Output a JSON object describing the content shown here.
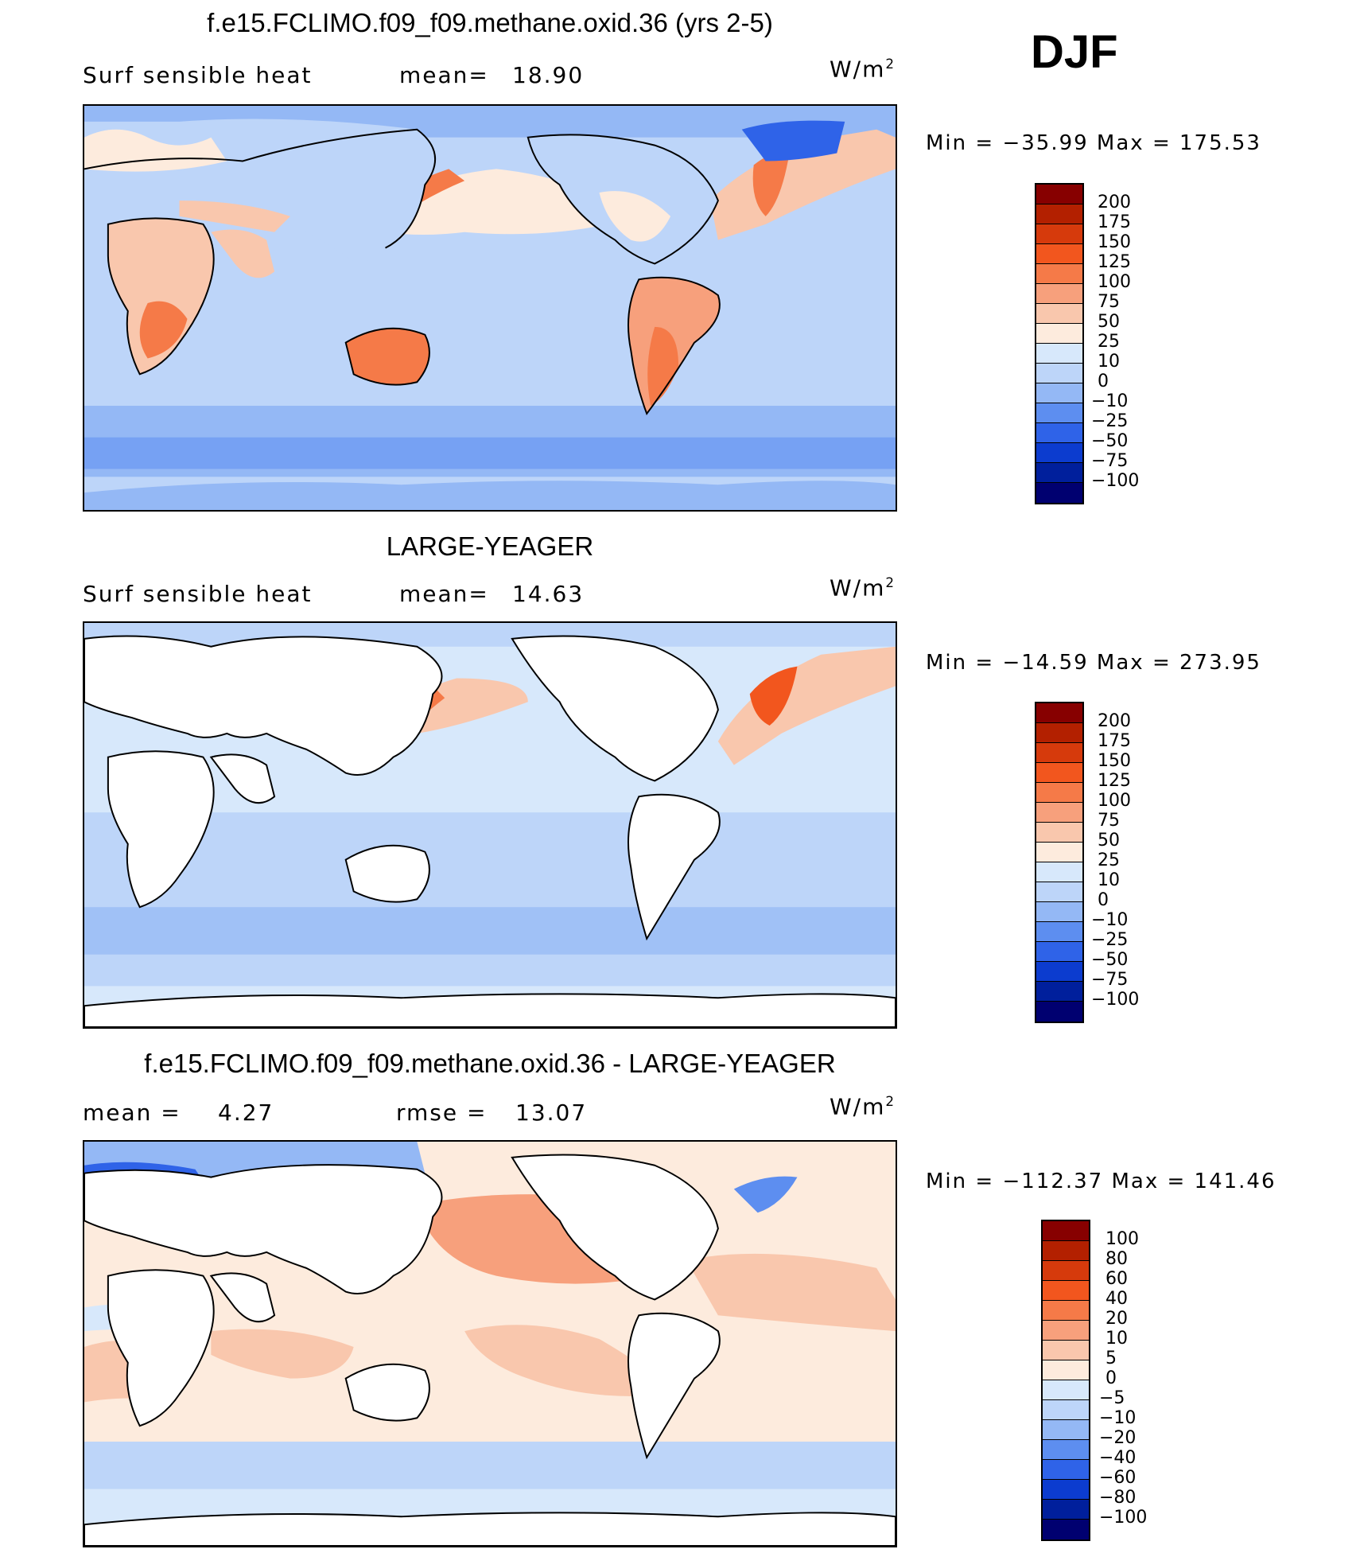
{
  "season": "DJF",
  "panels": [
    {
      "title": "f.e15.FCLIMO.f09_f09.methane.oxid.36 (yrs 2-5)",
      "variable": "Surf  sensible  heat",
      "stat_label": "mean=",
      "stat_value": "18.90",
      "stat2_label": "",
      "stat2_value": "",
      "units_base": "W/m",
      "units_exp": "2",
      "min_max": "Min  =  −35.99  Max  =  175.53",
      "land_filled": true,
      "colorbar": {
        "labels": [
          "200",
          "175",
          "150",
          "125",
          "100",
          "75",
          "50",
          "25",
          "10",
          "0",
          "−10",
          "−25",
          "−50",
          "−75",
          "−100"
        ],
        "colors": [
          "#870000",
          "#b32000",
          "#d63a0c",
          "#f2561e",
          "#f57a48",
          "#f7a07c",
          "#f9c7ad",
          "#fdebdd",
          "#d7e8fb",
          "#bdd5f9",
          "#94b8f5",
          "#5d8ef0",
          "#2f63e8",
          "#0c3ccf",
          "#001f9c",
          "#000070"
        ]
      }
    },
    {
      "title": "LARGE-YEAGER",
      "variable": "Surf  sensible  heat",
      "stat_label": "mean=",
      "stat_value": "14.63",
      "stat2_label": "",
      "stat2_value": "",
      "units_base": "W/m",
      "units_exp": "2",
      "min_max": "Min  =  −14.59  Max  =  273.95",
      "land_filled": false,
      "colorbar": {
        "labels": [
          "200",
          "175",
          "150",
          "125",
          "100",
          "75",
          "50",
          "25",
          "10",
          "0",
          "−10",
          "−25",
          "−50",
          "−75",
          "−100"
        ],
        "colors": [
          "#870000",
          "#b32000",
          "#d63a0c",
          "#f2561e",
          "#f57a48",
          "#f7a07c",
          "#f9c7ad",
          "#fdebdd",
          "#d7e8fb",
          "#bdd5f9",
          "#94b8f5",
          "#5d8ef0",
          "#2f63e8",
          "#0c3ccf",
          "#001f9c",
          "#000070"
        ]
      }
    },
    {
      "title": "f.e15.FCLIMO.f09_f09.methane.oxid.36 - LARGE-YEAGER",
      "variable": "",
      "stat_label": "mean  =",
      "stat_value": "4.27",
      "stat2_label": "rmse  =",
      "stat2_value": "13.07",
      "units_base": "W/m",
      "units_exp": "2",
      "min_max": "Min  =  −112.37  Max  =  141.46",
      "land_filled": false,
      "colorbar": {
        "labels": [
          "100",
          "80",
          "60",
          "40",
          "20",
          "10",
          "5",
          "0",
          "−5",
          "−10",
          "−20",
          "−40",
          "−60",
          "−80",
          "−100"
        ],
        "colors": [
          "#870000",
          "#b32000",
          "#d63a0c",
          "#f2561e",
          "#f57a48",
          "#f7a07c",
          "#f9c7ad",
          "#fdebdd",
          "#d7e8fb",
          "#bdd5f9",
          "#94b8f5",
          "#5d8ef0",
          "#2f63e8",
          "#0c3ccf",
          "#001f9c",
          "#000070"
        ]
      }
    }
  ]
}
